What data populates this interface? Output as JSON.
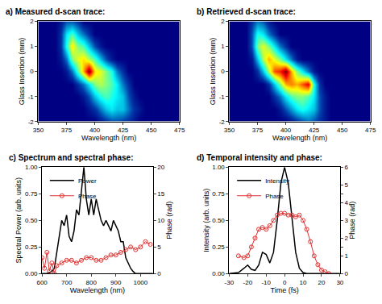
{
  "chart_data": [
    {
      "type": "heatmap",
      "title": "a) Measured d-scan trace:",
      "x_label": "Wavelength (nm)",
      "y_label": "Glass Insertion (mm)",
      "xlim": [
        350,
        475
      ],
      "xticks": [
        350,
        375,
        400,
        425,
        450,
        475
      ],
      "ylim": [
        -2,
        2
      ],
      "yticks": [
        -2,
        -1,
        0,
        1,
        2
      ],
      "x": [
        350,
        355,
        360,
        365,
        370,
        375,
        380,
        385,
        390,
        395,
        400,
        405,
        410,
        415,
        420,
        425,
        430,
        435,
        440,
        445,
        450,
        455,
        460,
        465,
        470,
        475
      ],
      "y": [
        -2,
        -1.5,
        -1,
        -0.5,
        0,
        0.5,
        1,
        1.5,
        2
      ],
      "z": [
        [
          0,
          0,
          0,
          0,
          0,
          0,
          0,
          0,
          0,
          0,
          0,
          0.05,
          0.1,
          0.15,
          0.15,
          0.12,
          0.1,
          0.05,
          0,
          0,
          0,
          0,
          0,
          0,
          0,
          0
        ],
        [
          0,
          0,
          0,
          0,
          0,
          0,
          0,
          0,
          0,
          0.05,
          0.1,
          0.2,
          0.3,
          0.35,
          0.3,
          0.3,
          0.2,
          0.1,
          0.05,
          0,
          0,
          0,
          0,
          0,
          0,
          0
        ],
        [
          0,
          0,
          0,
          0,
          0,
          0,
          0,
          0,
          0.05,
          0.15,
          0.3,
          0.4,
          0.45,
          0.4,
          0.35,
          0.3,
          0.15,
          0.05,
          0,
          0,
          0,
          0,
          0,
          0,
          0,
          0
        ],
        [
          0,
          0,
          0,
          0,
          0,
          0,
          0,
          0.1,
          0.2,
          0.35,
          0.5,
          0.55,
          0.5,
          0.45,
          0.35,
          0.2,
          0.1,
          0,
          0,
          0,
          0,
          0,
          0,
          0,
          0,
          0
        ],
        [
          0,
          0,
          0,
          0,
          0,
          0.05,
          0.2,
          0.45,
          0.7,
          1.0,
          0.65,
          0.6,
          0.5,
          0.4,
          0.2,
          0.1,
          0,
          0,
          0,
          0,
          0,
          0,
          0,
          0,
          0,
          0
        ],
        [
          0,
          0,
          0,
          0,
          0.05,
          0.2,
          0.5,
          0.6,
          0.65,
          0.55,
          0.45,
          0.3,
          0.15,
          0.05,
          0,
          0,
          0,
          0,
          0,
          0,
          0,
          0,
          0,
          0,
          0,
          0
        ],
        [
          0,
          0,
          0,
          0,
          0.1,
          0.4,
          0.65,
          0.5,
          0.45,
          0.3,
          0.15,
          0.05,
          0,
          0,
          0,
          0,
          0,
          0,
          0,
          0,
          0,
          0,
          0,
          0,
          0,
          0
        ],
        [
          0,
          0,
          0,
          0,
          0.1,
          0.35,
          0.45,
          0.3,
          0.2,
          0.1,
          0,
          0,
          0,
          0,
          0,
          0,
          0,
          0,
          0,
          0,
          0,
          0,
          0,
          0,
          0,
          0
        ],
        [
          0,
          0,
          0,
          0,
          0.05,
          0.15,
          0.15,
          0.1,
          0,
          0,
          0,
          0,
          0,
          0,
          0,
          0,
          0,
          0,
          0,
          0,
          0,
          0,
          0,
          0,
          0,
          0
        ]
      ]
    },
    {
      "type": "heatmap",
      "title": "b) Retrieved d-scan trace:",
      "x_label": "Wavelength (nm)",
      "y_label": "Glass Insertion (mm)",
      "xlim": [
        350,
        475
      ],
      "xticks": [
        350,
        375,
        400,
        425,
        450,
        475
      ],
      "ylim": [
        -2,
        2
      ],
      "yticks": [
        -2,
        -1,
        0,
        1,
        2
      ],
      "x": [
        350,
        355,
        360,
        365,
        370,
        375,
        380,
        385,
        390,
        395,
        400,
        405,
        410,
        415,
        420,
        425,
        430,
        435,
        440,
        445,
        450,
        455,
        460,
        465,
        470,
        475
      ],
      "y": [
        -2,
        -1.5,
        -1,
        -0.5,
        0,
        0.5,
        1,
        1.5,
        2
      ],
      "z": [
        [
          0,
          0,
          0,
          0,
          0,
          0,
          0,
          0,
          0,
          0,
          0,
          0.05,
          0.1,
          0.15,
          0.2,
          0.15,
          0.1,
          0.05,
          0,
          0,
          0,
          0,
          0,
          0,
          0,
          0
        ],
        [
          0,
          0,
          0,
          0,
          0,
          0,
          0,
          0,
          0,
          0.05,
          0.15,
          0.25,
          0.35,
          0.4,
          0.35,
          0.3,
          0.15,
          0.05,
          0,
          0,
          0,
          0,
          0,
          0,
          0,
          0
        ],
        [
          0,
          0,
          0,
          0,
          0,
          0,
          0,
          0,
          0.1,
          0.2,
          0.35,
          0.45,
          0.5,
          0.5,
          0.45,
          0.35,
          0.15,
          0.05,
          0,
          0,
          0,
          0,
          0,
          0,
          0,
          0
        ],
        [
          0,
          0,
          0,
          0,
          0,
          0,
          0,
          0.1,
          0.3,
          0.5,
          0.7,
          0.75,
          0.7,
          0.8,
          0.9,
          0.4,
          0.1,
          0,
          0,
          0,
          0,
          0,
          0,
          0,
          0,
          0
        ],
        [
          0,
          0,
          0,
          0,
          0,
          0.1,
          0.3,
          0.55,
          0.8,
          0.85,
          1.0,
          0.7,
          0.5,
          0.35,
          0.2,
          0.05,
          0,
          0,
          0,
          0,
          0,
          0,
          0,
          0,
          0,
          0
        ],
        [
          0,
          0,
          0,
          0,
          0.05,
          0.3,
          0.55,
          0.7,
          0.6,
          0.5,
          0.35,
          0.2,
          0.05,
          0,
          0,
          0,
          0,
          0,
          0,
          0,
          0,
          0,
          0,
          0,
          0,
          0
        ],
        [
          0,
          0,
          0,
          0,
          0.15,
          0.5,
          0.6,
          0.5,
          0.35,
          0.2,
          0.1,
          0,
          0,
          0,
          0,
          0,
          0,
          0,
          0,
          0,
          0,
          0,
          0,
          0,
          0,
          0
        ],
        [
          0,
          0,
          0,
          0,
          0.15,
          0.4,
          0.35,
          0.2,
          0.1,
          0,
          0,
          0,
          0,
          0,
          0,
          0,
          0,
          0,
          0,
          0,
          0,
          0,
          0,
          0,
          0,
          0
        ],
        [
          0,
          0,
          0,
          0,
          0.1,
          0.2,
          0.15,
          0.05,
          0,
          0,
          0,
          0,
          0,
          0,
          0,
          0,
          0,
          0,
          0,
          0,
          0,
          0,
          0,
          0,
          0,
          0
        ]
      ]
    },
    {
      "type": "line",
      "title": "c) Spectrum and spectral phase:",
      "x_label": "Wavelength (nm)",
      "y_label": "Spectral Power (arb. units)",
      "y2_label": "Phase (rad)",
      "xlim": [
        600,
        1050
      ],
      "xticks": [
        600,
        700,
        800,
        900,
        1000
      ],
      "ylim": [
        0,
        1
      ],
      "yticks": [
        {
          "value": 0,
          "label": "0.00"
        },
        {
          "value": 0.25,
          "label": "0.25"
        },
        {
          "value": 0.5,
          "label": "0.50"
        },
        {
          "value": 0.75,
          "label": "0.75"
        },
        {
          "value": 1,
          "label": "1.00"
        }
      ],
      "y2lim": [
        0,
        20
      ],
      "y2ticks": [
        0,
        5,
        10,
        15,
        20
      ],
      "legend": "top left",
      "series": [
        {
          "name": "Power",
          "color": "#000000",
          "type": "line",
          "line_style": "solid",
          "x": [
            600,
            620,
            640,
            650,
            660,
            670,
            680,
            690,
            700,
            710,
            720,
            730,
            740,
            750,
            760,
            770,
            780,
            790,
            800,
            810,
            820,
            830,
            840,
            850,
            860,
            870,
            880,
            890,
            900,
            910,
            920,
            930,
            940,
            950,
            960,
            970,
            980,
            1000,
            1020,
            1050
          ],
          "values": [
            0,
            0,
            0.02,
            0.05,
            0.2,
            0.35,
            0.5,
            0.45,
            0.55,
            0.35,
            0.3,
            0.4,
            0.6,
            0.55,
            0.75,
            1.0,
            0.7,
            0.55,
            0.7,
            0.55,
            0.7,
            0.6,
            0.5,
            0.45,
            0.5,
            0.45,
            0.4,
            0.5,
            0.45,
            0.4,
            0.3,
            0.3,
            0.15,
            0.1,
            0.05,
            0.02,
            0,
            0,
            0,
            0
          ]
        },
        {
          "name": "Phase",
          "color": "#e03030",
          "type": "scatter",
          "marker": "circle-open",
          "line_style": "solid",
          "axis": "y2",
          "x": [
            600,
            610,
            620,
            630,
            640,
            650,
            660,
            680,
            700,
            720,
            740,
            760,
            780,
            800,
            820,
            840,
            860,
            880,
            900,
            920,
            940,
            960,
            980,
            1000,
            1020,
            1040
          ],
          "values": [
            3,
            1,
            4,
            0.5,
            2,
            0,
            1.5,
            2,
            2.5,
            2.5,
            2,
            2.5,
            3,
            3,
            2.5,
            2.5,
            3,
            3.5,
            3.5,
            4,
            4.5,
            5,
            4.5,
            5,
            6,
            5.5
          ]
        }
      ]
    },
    {
      "type": "line",
      "title": "d) Temporal intensity and phase:",
      "x_label": "Time (fs)",
      "y_label": "Intensity (arb. units)",
      "y2_label": "Phase (rad)",
      "xlim": [
        -30,
        30
      ],
      "xticks": [
        -30,
        -20,
        -10,
        0,
        10,
        20,
        30
      ],
      "ylim": [
        0,
        1
      ],
      "yticks": [
        {
          "value": 0,
          "label": "0.00"
        },
        {
          "value": 0.25,
          "label": "0.25"
        },
        {
          "value": 0.5,
          "label": "0.50"
        },
        {
          "value": 0.75,
          "label": "0.75"
        },
        {
          "value": 1,
          "label": "1.00"
        }
      ],
      "y2lim": [
        0,
        6
      ],
      "y2ticks": [
        0,
        1,
        2,
        3,
        4,
        5,
        6
      ],
      "legend": "top left",
      "series": [
        {
          "name": "Intensity",
          "color": "#000000",
          "type": "line",
          "line_style": "solid",
          "x": [
            -30,
            -25,
            -22,
            -20,
            -18,
            -16,
            -14,
            -12,
            -10,
            -8,
            -6,
            -4,
            -2,
            0,
            2,
            4,
            6,
            8,
            10,
            12,
            15,
            20,
            25,
            30
          ],
          "values": [
            0,
            0.01,
            0.05,
            0.08,
            0.04,
            0.03,
            0.08,
            0.2,
            0.18,
            0.1,
            0.2,
            0.5,
            0.85,
            1.0,
            0.85,
            0.5,
            0.2,
            0.05,
            0.01,
            0,
            0,
            0,
            0,
            0
          ]
        },
        {
          "name": "Phase",
          "color": "#e03030",
          "type": "scatter",
          "marker": "circle-open",
          "line_style": "solid",
          "axis": "y2",
          "x": [
            -25,
            -22,
            -20,
            -18,
            -16,
            -14,
            -12,
            -10,
            -8,
            -6,
            -4,
            -2,
            0,
            2,
            4,
            6,
            8,
            10,
            12,
            14,
            16,
            18,
            20,
            22,
            24
          ],
          "values": [
            1.0,
            0.9,
            1.0,
            1.5,
            2,
            2.5,
            2.6,
            2.5,
            2.7,
            3.0,
            3.3,
            3.4,
            3.4,
            3.3,
            3.3,
            3.2,
            3.3,
            3.0,
            2.5,
            1.8,
            1.0,
            0.5,
            0.2,
            0.1,
            0
          ]
        }
      ]
    }
  ]
}
